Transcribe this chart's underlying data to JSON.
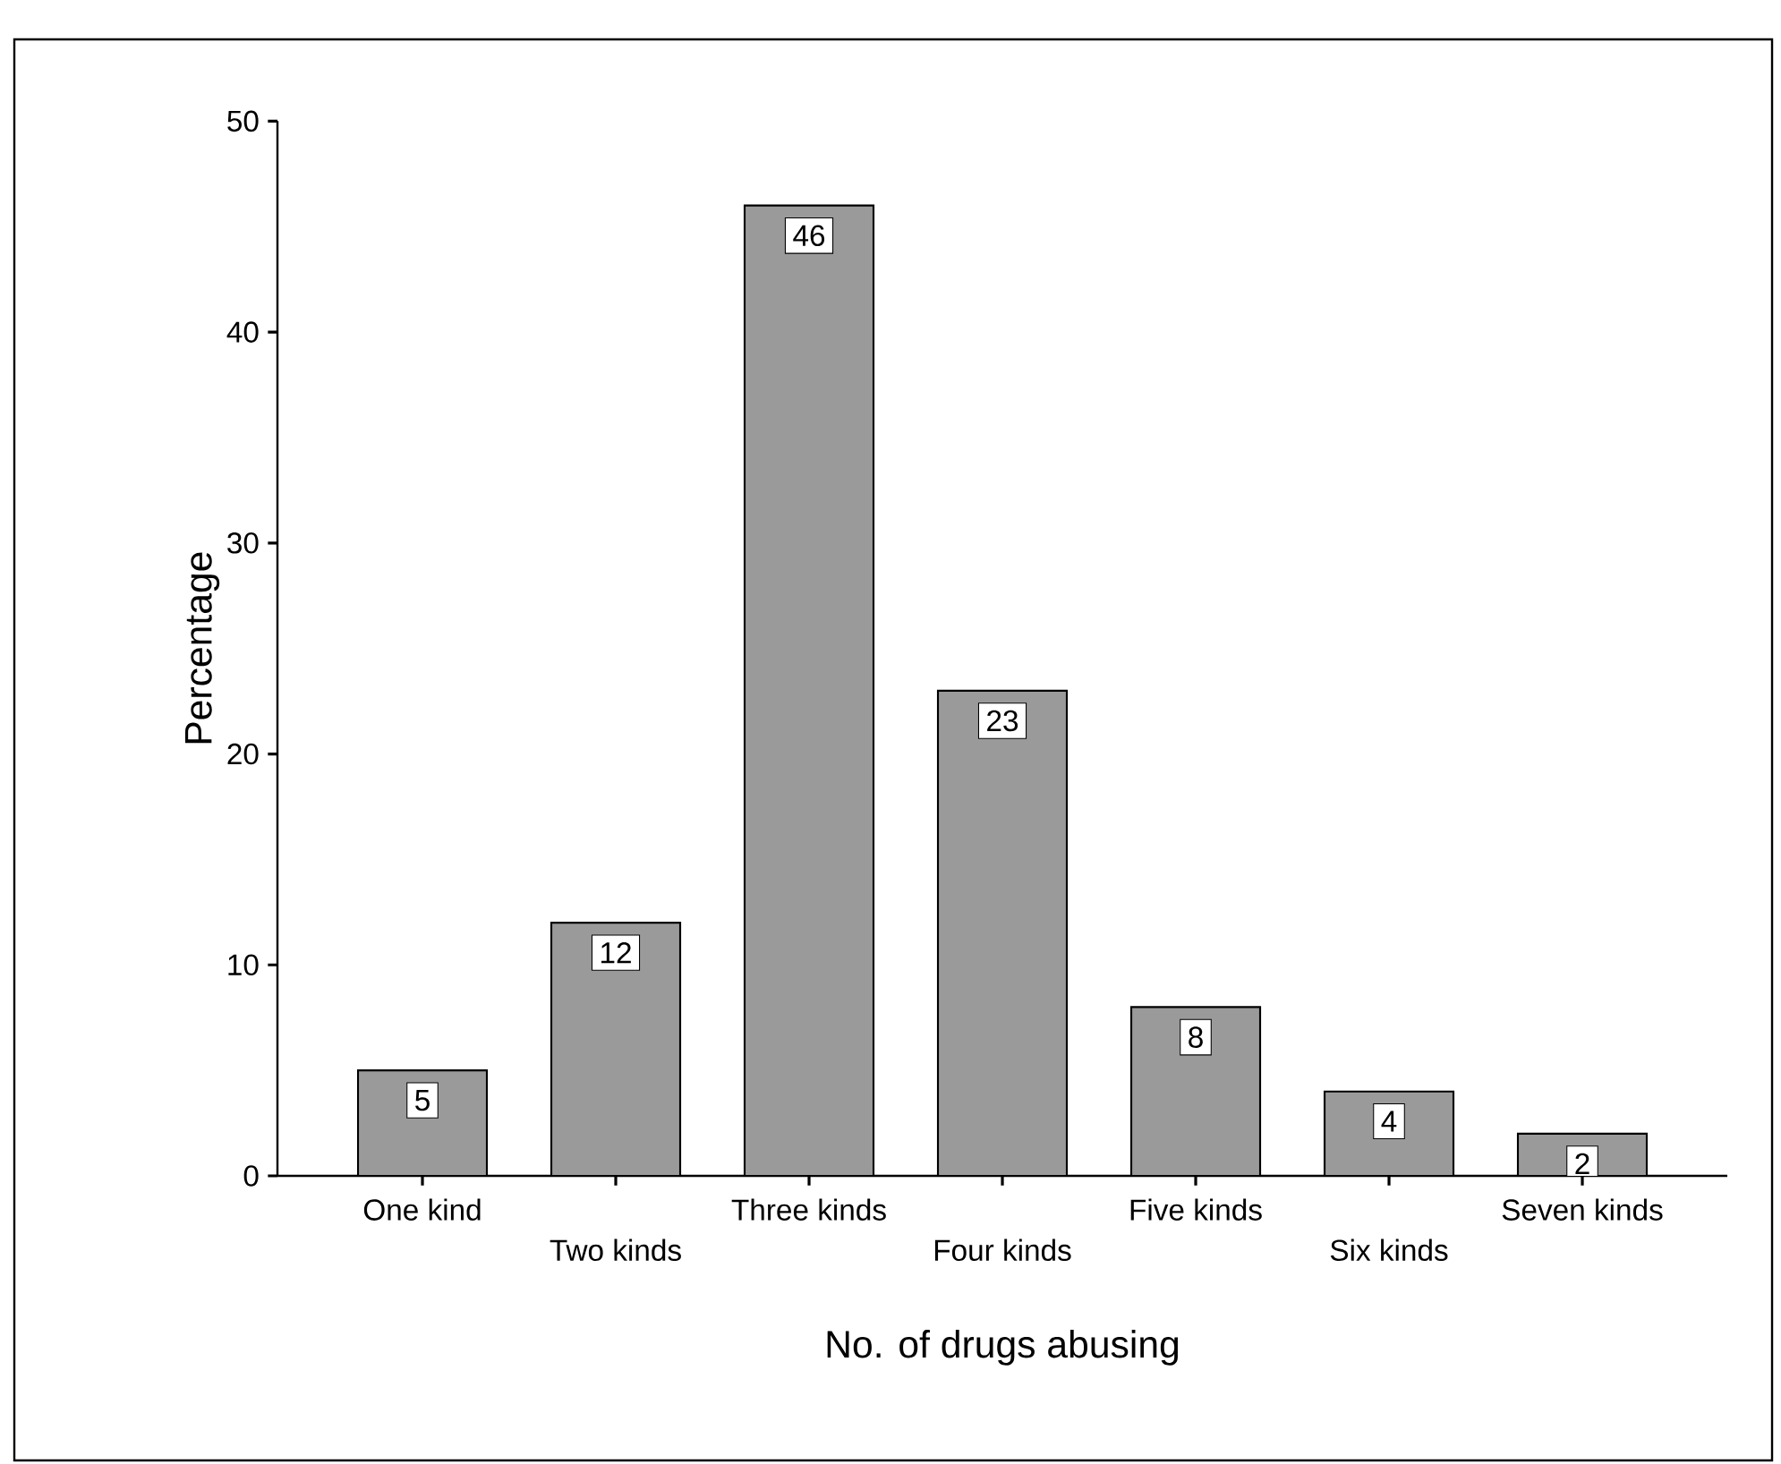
{
  "chart_data": {
    "type": "bar",
    "xlabel": "No. of drugs abusing",
    "ylabel": "Percentage",
    "categories": [
      "One kind",
      "Two kinds",
      "Three kinds",
      "Four kinds",
      "Five kinds",
      "Six kinds",
      "Seven kinds"
    ],
    "values": [
      5,
      12,
      46,
      23,
      8,
      4,
      2
    ],
    "color": "#9a9a9a",
    "ylim": [
      0,
      50
    ],
    "yticks": [
      0,
      10,
      20,
      30,
      40,
      50
    ],
    "data_labels": true,
    "grid": false
  }
}
